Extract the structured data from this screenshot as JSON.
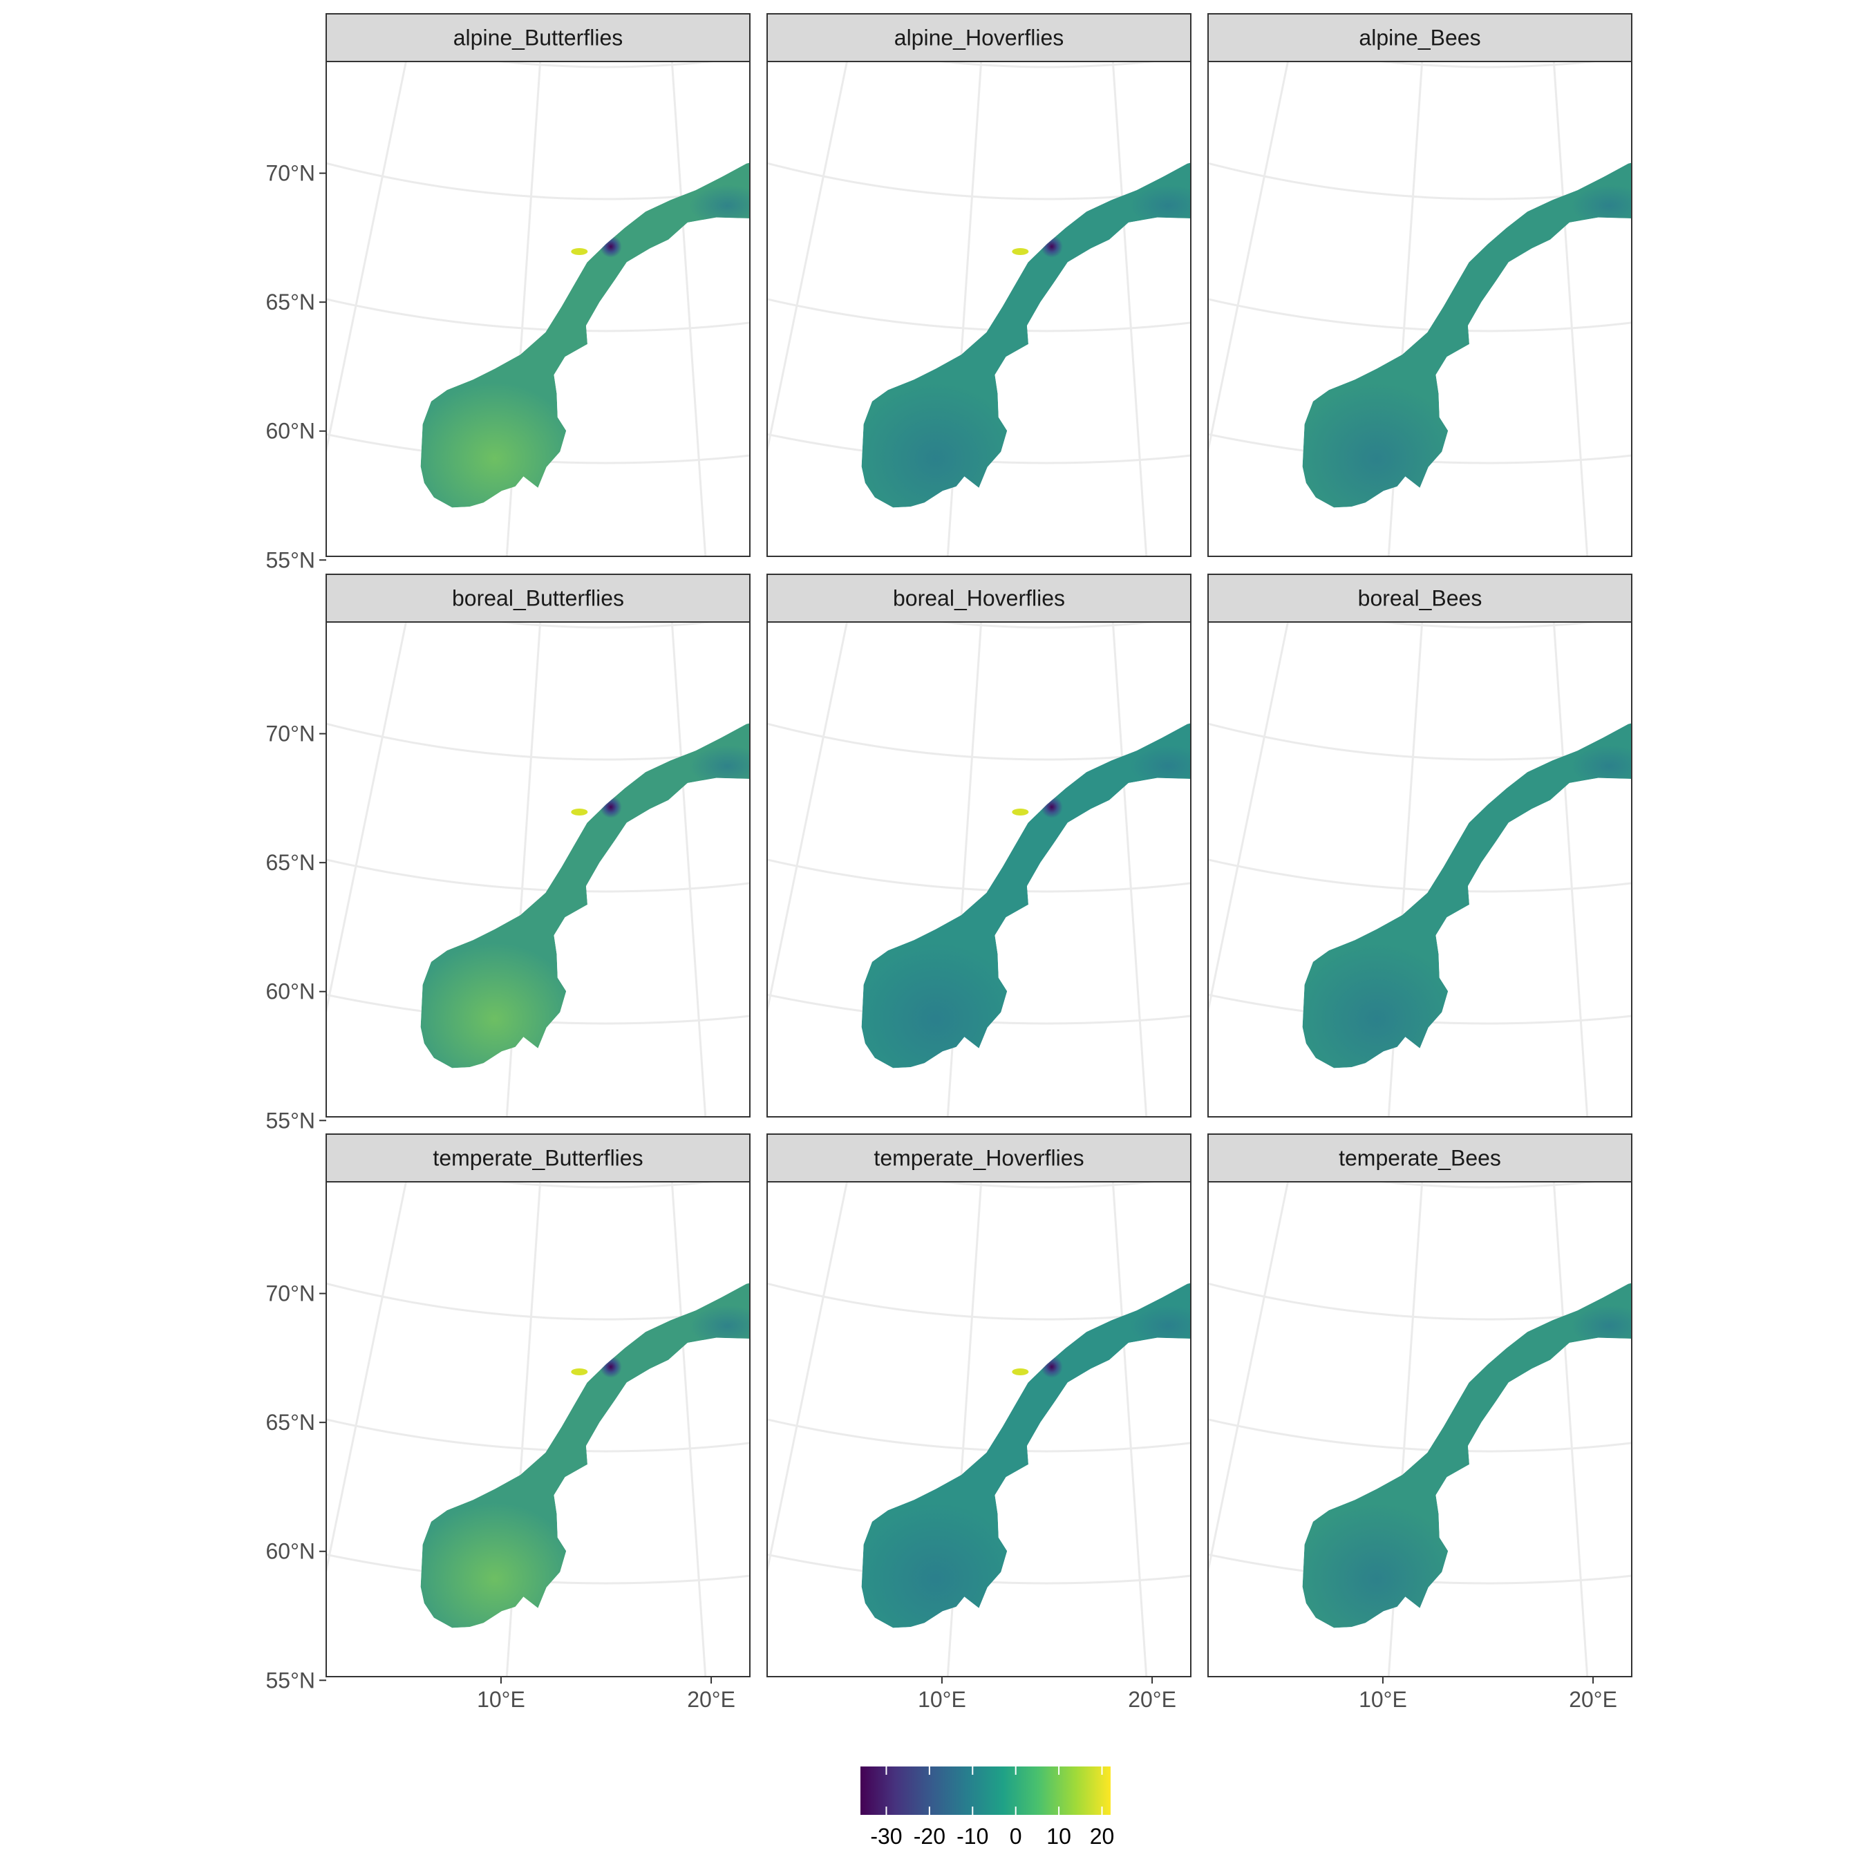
{
  "map_data": {
    "type": "faceted-raster-map",
    "region": "Norway",
    "projection": "conic",
    "graticule": true,
    "panels": [
      {
        "title": "alpine_Butterflies",
        "row": 0,
        "col": 0,
        "hotspot": "strong-low",
        "tone": 0.35
      },
      {
        "title": "alpine_Hoverflies",
        "row": 0,
        "col": 1,
        "hotspot": "strong-low",
        "tone": 0.15
      },
      {
        "title": "alpine_Bees",
        "row": 0,
        "col": 2,
        "hotspot": "none",
        "tone": 0.2
      },
      {
        "title": "boreal_Butterflies",
        "row": 1,
        "col": 0,
        "hotspot": "strong-low",
        "tone": 0.3
      },
      {
        "title": "boreal_Hoverflies",
        "row": 1,
        "col": 1,
        "hotspot": "strong-low",
        "tone": 0.1
      },
      {
        "title": "boreal_Bees",
        "row": 1,
        "col": 2,
        "hotspot": "none",
        "tone": 0.15
      },
      {
        "title": "temperate_Butterflies",
        "row": 2,
        "col": 0,
        "hotspot": "strong-low",
        "tone": 0.3
      },
      {
        "title": "temperate_Hoverflies",
        "row": 2,
        "col": 1,
        "hotspot": "strong-low",
        "tone": 0.1
      },
      {
        "title": "temperate_Bees",
        "row": 2,
        "col": 2,
        "hotspot": "none",
        "tone": 0.2
      }
    ],
    "lat_ticks": [
      {
        "value": 70,
        "label": "70°N"
      },
      {
        "value": 65,
        "label": "65°N"
      },
      {
        "value": 60,
        "label": "60°N"
      },
      {
        "value": 55,
        "label": "55°N"
      }
    ],
    "lon_ticks": [
      {
        "value": 10,
        "label": "10°E"
      },
      {
        "value": 20,
        "label": "20°E"
      }
    ],
    "legend": {
      "position": "bottom",
      "min": -36,
      "max": 22,
      "ticks": [
        {
          "value": -30,
          "label": "-30"
        },
        {
          "value": -20,
          "label": "-20"
        },
        {
          "value": -10,
          "label": "-10"
        },
        {
          "value": 0,
          "label": "0"
        },
        {
          "value": 10,
          "label": "10"
        },
        {
          "value": 20,
          "label": "20"
        }
      ],
      "palette": [
        "#440154",
        "#46337e",
        "#365c8d",
        "#277f8e",
        "#1fa187",
        "#4ac16d",
        "#a0da39",
        "#fde725"
      ]
    },
    "colors": {
      "strip_fill": "#d9d9d9",
      "panel_border": "#333333",
      "grid": "#ebebeb",
      "axis_text": "#4d4d4d"
    }
  }
}
